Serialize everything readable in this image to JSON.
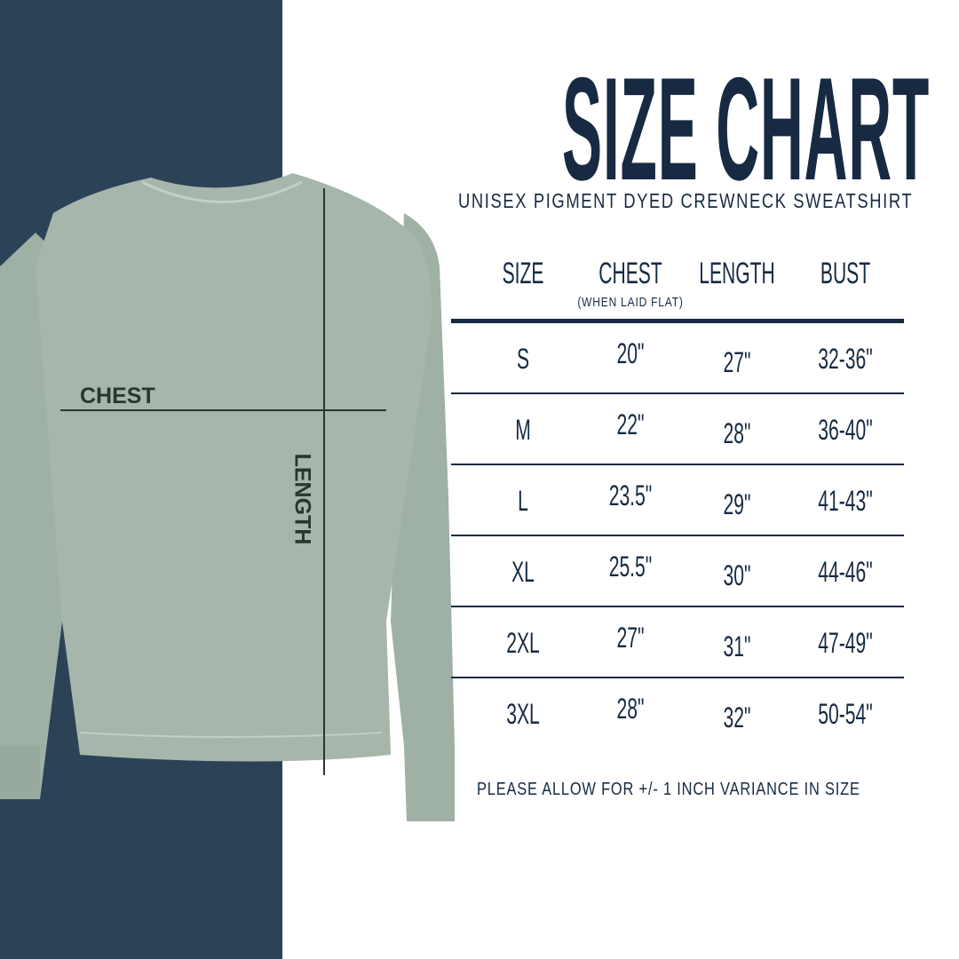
{
  "title": "SIZE CHART",
  "subtitle": "UNISEX PIGMENT DYED CREWNECK SWEATSHIRT",
  "colors": {
    "panel": "#2c4257",
    "garment": "#a6b6ab",
    "text": "#172a42"
  },
  "diagram": {
    "chest_label": "CHEST",
    "length_label": "LENGTH"
  },
  "table": {
    "headers": [
      "SIZE",
      "CHEST",
      "LENGTH",
      "BUST"
    ],
    "chest_note": "(WHEN LAID FLAT)",
    "rows": [
      [
        "S",
        "20\"",
        "27\"",
        "32-36\""
      ],
      [
        "M",
        "22\"",
        "28\"",
        "36-40\""
      ],
      [
        "L",
        "23.5\"",
        "29\"",
        "41-43\""
      ],
      [
        "XL",
        "25.5\"",
        "30\"",
        "44-46\""
      ],
      [
        "2XL",
        "27\"",
        "31\"",
        "47-49\""
      ],
      [
        "3XL",
        "28\"",
        "32\"",
        "50-54\""
      ]
    ]
  },
  "note": "PLEASE ALLOW FOR +/- 1 INCH VARIANCE IN SIZE"
}
